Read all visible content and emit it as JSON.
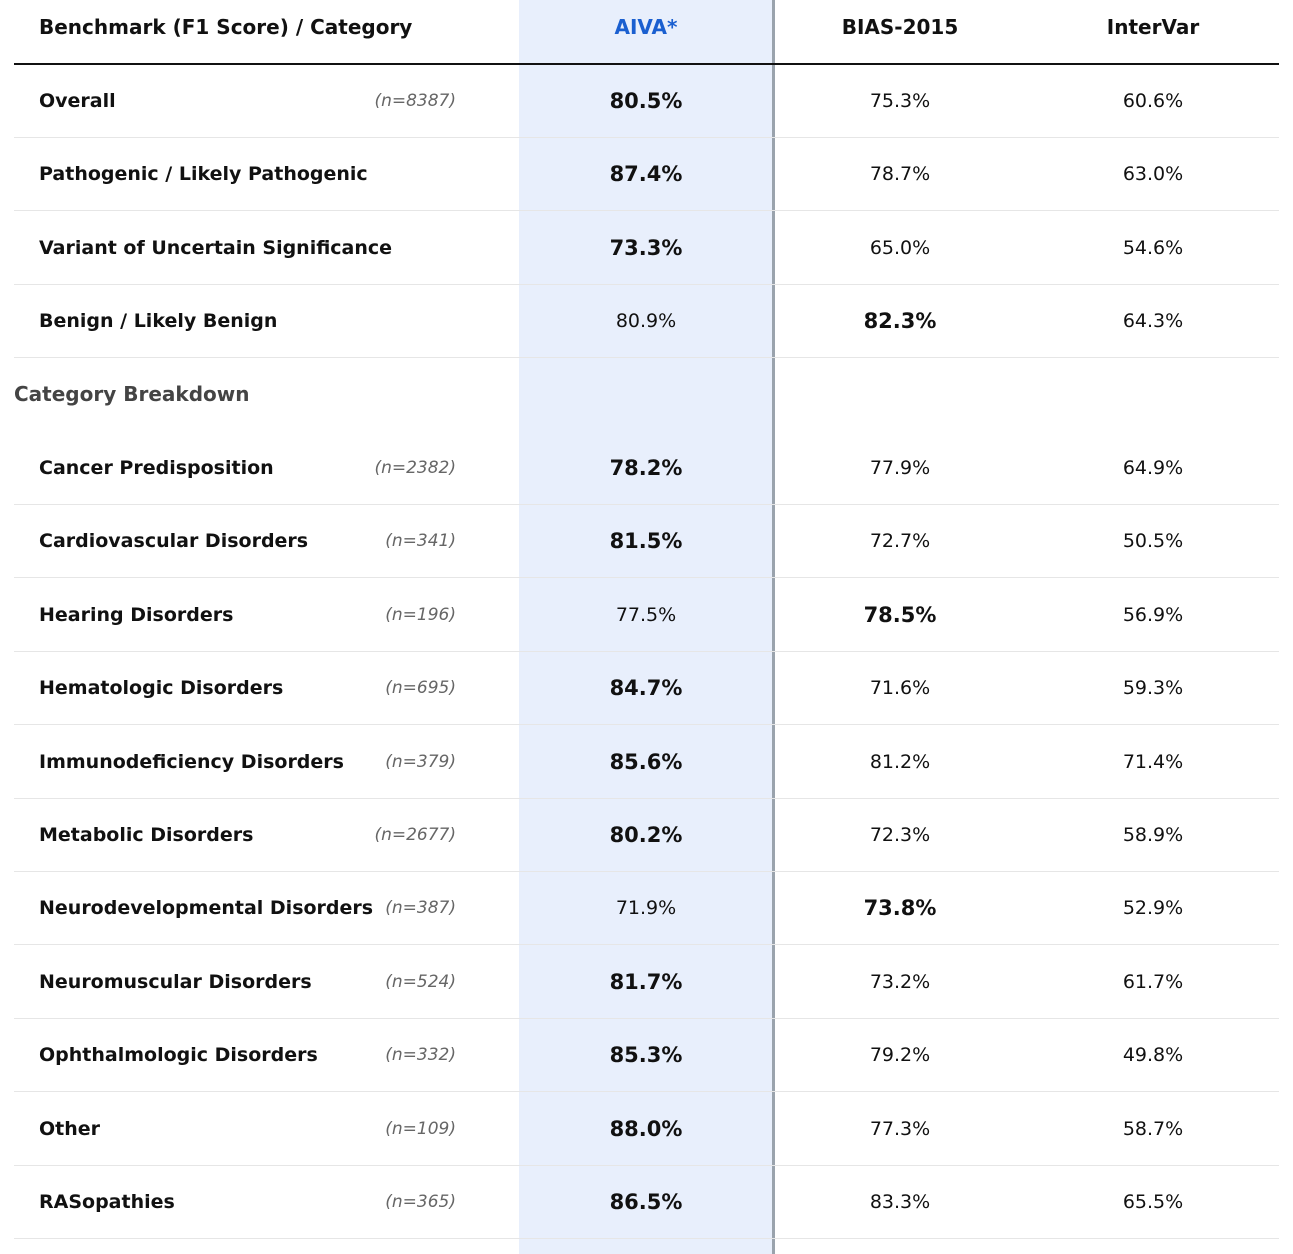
{
  "chart_data": {
    "type": "table",
    "columns": [
      "Benchmark (F1 Score) / Category",
      "AIVA*",
      "BIAS-2015",
      "InterVar"
    ],
    "highlight_color": "#1a5fd0",
    "section_label": "Category Breakdown",
    "summary_rows": [
      {
        "label": "Overall",
        "n": "(n=8387)",
        "values": [
          "80.5%",
          "75.3%",
          "60.6%"
        ],
        "best": 0
      },
      {
        "label": "Pathogenic / Likely Pathogenic",
        "n": "",
        "values": [
          "87.4%",
          "78.7%",
          "63.0%"
        ],
        "best": 0
      },
      {
        "label": "Variant of Uncertain Significance",
        "n": "",
        "values": [
          "73.3%",
          "65.0%",
          "54.6%"
        ],
        "best": 0
      },
      {
        "label": "Benign / Likely Benign",
        "n": "",
        "values": [
          "80.9%",
          "82.3%",
          "64.3%"
        ],
        "best": 1
      }
    ],
    "category_rows": [
      {
        "label": "Cancer Predisposition",
        "n": "(n=2382)",
        "values": [
          "78.2%",
          "77.9%",
          "64.9%"
        ],
        "best": 0
      },
      {
        "label": "Cardiovascular Disorders",
        "n": "(n=341)",
        "values": [
          "81.5%",
          "72.7%",
          "50.5%"
        ],
        "best": 0
      },
      {
        "label": "Hearing Disorders",
        "n": "(n=196)",
        "values": [
          "77.5%",
          "78.5%",
          "56.9%"
        ],
        "best": 1
      },
      {
        "label": "Hematologic Disorders",
        "n": "(n=695)",
        "values": [
          "84.7%",
          "71.6%",
          "59.3%"
        ],
        "best": 0
      },
      {
        "label": "Immunodeficiency Disorders",
        "n": "(n=379)",
        "values": [
          "85.6%",
          "81.2%",
          "71.4%"
        ],
        "best": 0
      },
      {
        "label": "Metabolic Disorders",
        "n": "(n=2677)",
        "values": [
          "80.2%",
          "72.3%",
          "58.9%"
        ],
        "best": 0
      },
      {
        "label": "Neurodevelopmental Disorders",
        "n": "(n=387)",
        "values": [
          "71.9%",
          "73.8%",
          "52.9%"
        ],
        "best": 1
      },
      {
        "label": "Neuromuscular Disorders",
        "n": "(n=524)",
        "values": [
          "81.7%",
          "73.2%",
          "61.7%"
        ],
        "best": 0
      },
      {
        "label": "Ophthalmologic Disorders",
        "n": "(n=332)",
        "values": [
          "85.3%",
          "79.2%",
          "49.8%"
        ],
        "best": 0
      },
      {
        "label": "Other",
        "n": "(n=109)",
        "values": [
          "88.0%",
          "77.3%",
          "58.7%"
        ],
        "best": 0
      },
      {
        "label": "RASopathies",
        "n": "(n=365)",
        "values": [
          "86.5%",
          "83.3%",
          "65.5%"
        ],
        "best": 0
      }
    ]
  }
}
